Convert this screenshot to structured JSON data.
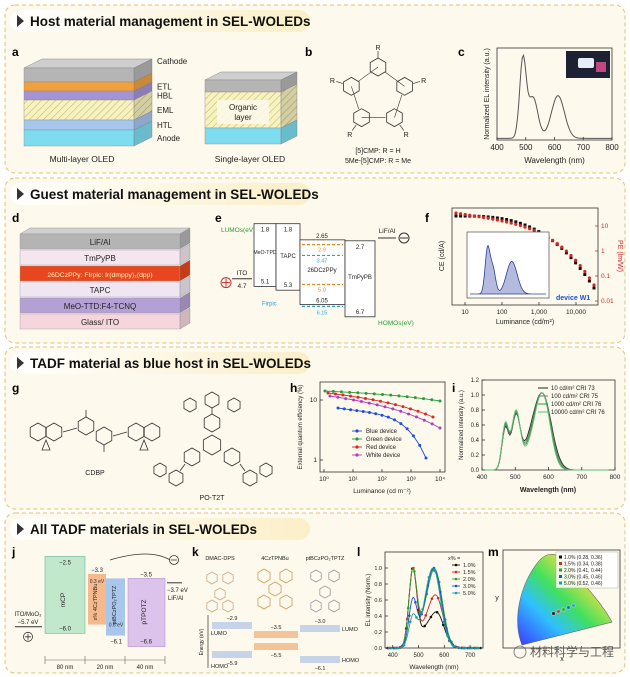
{
  "sections": [
    {
      "title": "Host material management in SEL-WOLEDs"
    },
    {
      "title": "Guest material management in SEL-WOLEDs"
    },
    {
      "title": "TADF material as blue host in SEL-WOLEDs"
    },
    {
      "title": "All TADF materials in SEL-WOLEDs"
    }
  ],
  "panels": {
    "a": {
      "label": "a",
      "layers": [
        "Cathode",
        "ETL",
        "HBL",
        "EML",
        "HTL",
        "Anode"
      ],
      "organic_layer": [
        "Organic",
        "layer"
      ],
      "captions": [
        "Multi-layer OLED",
        "Single-layer OLED"
      ]
    },
    "b": {
      "label": "b",
      "substituent": "R",
      "names": [
        "[5]CMP: R = H",
        "5Me-[5]CMP: R = Me"
      ]
    },
    "c": {
      "label": "c",
      "y_label": "Normalized EL intensity (a.u.)",
      "x_label": "Wavelength (nm)",
      "x_ticks": [
        "400",
        "500",
        "600",
        "700",
        "800"
      ]
    },
    "d": {
      "label": "d",
      "layers": [
        "LiF/Al",
        "TmPyPB",
        "26DCzPPy: FIrpic: Ir(dmppy)₂(dpp)",
        "TAPC",
        "MeO-TTD:F4-TCNQ",
        "Glass/ ITO"
      ]
    },
    "e": {
      "label": "e",
      "lumo_title": "LUMOs(eV)",
      "homo_title": "HOMOs(eV)",
      "ito": "ITO",
      "ito_level": "4.7",
      "meo_tpd": "MeO-TPD",
      "meo_tpd_levels": [
        "1.8",
        "5.1"
      ],
      "tapc": "TAPC",
      "tapc_levels": [
        "1.8",
        "5.3"
      ],
      "host": "26DCzPPy",
      "host_levels": [
        "2.65",
        "6.05"
      ],
      "ir_levels": [
        "2.9",
        "5.0"
      ],
      "firpic": "Firpic",
      "firpic_levels": [
        "3.47",
        "6.15"
      ],
      "tmpypb": "TmPyPB",
      "tmpypb_levels": [
        "2.7",
        "6.7"
      ],
      "cathode": "LiF/Al"
    },
    "f": {
      "label": "f",
      "y_label": "CE (cd/A)",
      "y2_label": "PE (lm/W)",
      "x_label": "Luminance (cd/m²)",
      "x_ticks": [
        "10",
        "100",
        "1,000",
        "10,000"
      ],
      "y2_ticks": [
        "10",
        "1",
        "0.1",
        "0.01"
      ],
      "device": "device W1"
    },
    "g": {
      "label": "g",
      "molecules": [
        "CDBP",
        "PO-T2T"
      ]
    },
    "h": {
      "label": "h",
      "y_label": "External quantum efficiency (%)",
      "x_label": "Luminance (cd m⁻²)",
      "x_ticks": [
        "10⁰",
        "10¹",
        "10²",
        "10³",
        "10⁴"
      ],
      "y_ticks": [
        "10",
        "1"
      ],
      "legend": [
        "Blue device",
        "Green device",
        "Red device",
        "White device"
      ]
    },
    "i": {
      "label": "i",
      "y_label": "Normalized intensity (a.u.)",
      "x_label": "Wavelength (nm)",
      "x_ticks": [
        "400",
        "500",
        "600",
        "700",
        "800"
      ],
      "y_ticks": [
        "0.0",
        "0.2",
        "0.4",
        "0.6",
        "0.8",
        "1.0",
        "1.2"
      ],
      "legend": [
        "10 cd/m²  CRI 73",
        "100 cd/m²  CRI 75",
        "1000 cd/m²  CRI 76",
        "10000 cd/m²  CRI 76"
      ]
    },
    "j": {
      "label": "j",
      "materials": [
        "mCP",
        "x% 4CzTPNBu",
        "ptBCzPO₂TPTZ",
        "pTPOTZ"
      ],
      "levels": [
        "−2.5",
        "−3.3",
        "−3.5",
        "−3.7 eV",
        "−6.0",
        "−6.1",
        "−6.6"
      ],
      "anode": "ITO/MoO₃",
      "anode_level": "−5.7 eV",
      "cathode": "LiF/Al",
      "gaps": [
        "0.3 eV",
        "0.6 eV"
      ],
      "thickness": [
        "80 nm",
        "20 nm",
        "40 nm"
      ]
    },
    "k": {
      "label": "k",
      "materials": [
        "DMAC-DPS",
        "4CzTPNBu",
        "ptBCzPO₂TPTZ"
      ],
      "lumo": "LUMO",
      "homo": "HOMO",
      "y_label": "Energy (eV)",
      "levels": [
        "−2.9",
        "−3.5",
        "−3.0",
        "−5.9",
        "−5.5",
        "−6.1"
      ]
    },
    "l": {
      "label": "l",
      "y_label": "EL intensity (Norm.)",
      "x_label": "Wavelength (nm)",
      "x_ticks": [
        "400",
        "500",
        "600",
        "700"
      ],
      "y_ticks": [
        "0.0",
        "0.2",
        "0.4",
        "0.6",
        "0.8",
        "1.0"
      ],
      "legend_title": "x% =",
      "legend": [
        "1.0%",
        "1.5%",
        "2.0%",
        "3.0%",
        "5.0%"
      ]
    },
    "m": {
      "label": "m",
      "x_label": "x",
      "y_label": "y",
      "legend": [
        "1.0% (0.28, 0.36)",
        "1.5% (0.34, 0.38)",
        "2.0% (0.41, 0.44)",
        "3.0% (0.45, 0.46)",
        "5.0% (0.52, 0.46)"
      ]
    }
  },
  "watermark": "材料科学与工程"
}
